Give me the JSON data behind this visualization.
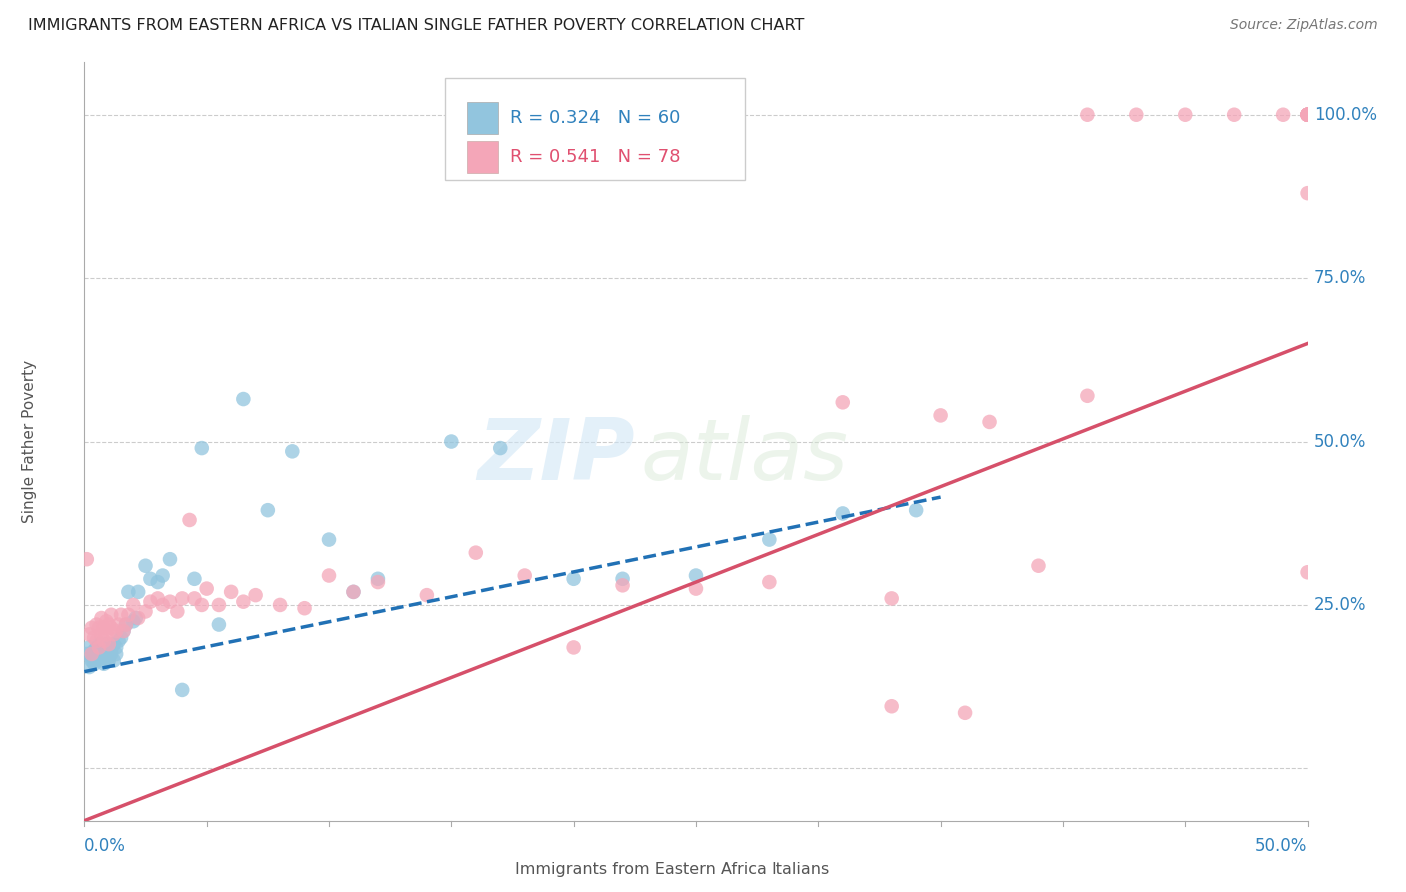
{
  "title": "IMMIGRANTS FROM EASTERN AFRICA VS ITALIAN SINGLE FATHER POVERTY CORRELATION CHART",
  "source": "Source: ZipAtlas.com",
  "ylabel": "Single Father Poverty",
  "xlim": [
    0.0,
    0.5
  ],
  "ylim": [
    -0.08,
    1.08
  ],
  "legend_r1": "R = 0.324",
  "legend_n1": "N = 60",
  "legend_r2": "R = 0.541",
  "legend_n2": "N = 78",
  "color_blue": "#92c5de",
  "color_pink": "#f4a6b8",
  "color_blue_line": "#2171b5",
  "color_pink_line": "#d6506a",
  "color_blue_text": "#3182bd",
  "color_pink_text": "#e05070",
  "watermark_zip": "ZIP",
  "watermark_atlas": "atlas",
  "blue_line_x0": 0.0,
  "blue_line_y0": 0.148,
  "blue_line_x1": 0.35,
  "blue_line_y1": 0.415,
  "pink_line_x0": 0.0,
  "pink_line_y0": -0.08,
  "pink_line_x1": 0.5,
  "pink_line_y1": 0.65,
  "blue_scatter_x": [
    0.001,
    0.002,
    0.002,
    0.003,
    0.003,
    0.004,
    0.004,
    0.005,
    0.005,
    0.005,
    0.006,
    0.006,
    0.007,
    0.007,
    0.007,
    0.008,
    0.008,
    0.008,
    0.009,
    0.009,
    0.01,
    0.01,
    0.01,
    0.011,
    0.011,
    0.012,
    0.012,
    0.013,
    0.013,
    0.014,
    0.015,
    0.016,
    0.017,
    0.018,
    0.02,
    0.021,
    0.022,
    0.025,
    0.027,
    0.03,
    0.032,
    0.035,
    0.04,
    0.045,
    0.048,
    0.055,
    0.065,
    0.075,
    0.085,
    0.1,
    0.11,
    0.12,
    0.15,
    0.17,
    0.2,
    0.22,
    0.25,
    0.28,
    0.31,
    0.34
  ],
  "blue_scatter_y": [
    0.175,
    0.155,
    0.185,
    0.17,
    0.165,
    0.18,
    0.16,
    0.175,
    0.185,
    0.165,
    0.19,
    0.17,
    0.185,
    0.165,
    0.175,
    0.18,
    0.17,
    0.16,
    0.19,
    0.175,
    0.185,
    0.17,
    0.165,
    0.18,
    0.175,
    0.19,
    0.165,
    0.185,
    0.175,
    0.195,
    0.2,
    0.21,
    0.22,
    0.27,
    0.225,
    0.23,
    0.27,
    0.31,
    0.29,
    0.285,
    0.295,
    0.32,
    0.12,
    0.29,
    0.49,
    0.22,
    0.565,
    0.395,
    0.485,
    0.35,
    0.27,
    0.29,
    0.5,
    0.49,
    0.29,
    0.29,
    0.295,
    0.35,
    0.39,
    0.395
  ],
  "pink_scatter_x": [
    0.001,
    0.002,
    0.003,
    0.003,
    0.004,
    0.005,
    0.005,
    0.006,
    0.006,
    0.007,
    0.007,
    0.008,
    0.008,
    0.009,
    0.009,
    0.01,
    0.01,
    0.011,
    0.011,
    0.012,
    0.013,
    0.014,
    0.015,
    0.016,
    0.017,
    0.018,
    0.02,
    0.022,
    0.025,
    0.027,
    0.03,
    0.032,
    0.035,
    0.038,
    0.04,
    0.043,
    0.045,
    0.048,
    0.05,
    0.055,
    0.06,
    0.065,
    0.07,
    0.08,
    0.09,
    0.1,
    0.11,
    0.12,
    0.14,
    0.16,
    0.18,
    0.2,
    0.22,
    0.25,
    0.28,
    0.31,
    0.33,
    0.35,
    0.37,
    0.39,
    0.41,
    0.43,
    0.45,
    0.47,
    0.49,
    0.5,
    0.5,
    0.5,
    0.5,
    0.5,
    0.5,
    0.5,
    0.5,
    0.5,
    0.41,
    0.5,
    0.33,
    0.36
  ],
  "pink_scatter_y": [
    0.32,
    0.205,
    0.215,
    0.175,
    0.2,
    0.22,
    0.195,
    0.215,
    0.185,
    0.205,
    0.23,
    0.215,
    0.195,
    0.225,
    0.205,
    0.22,
    0.19,
    0.215,
    0.235,
    0.205,
    0.21,
    0.22,
    0.235,
    0.21,
    0.22,
    0.235,
    0.25,
    0.23,
    0.24,
    0.255,
    0.26,
    0.25,
    0.255,
    0.24,
    0.26,
    0.38,
    0.26,
    0.25,
    0.275,
    0.25,
    0.27,
    0.255,
    0.265,
    0.25,
    0.245,
    0.295,
    0.27,
    0.285,
    0.265,
    0.33,
    0.295,
    0.185,
    0.28,
    0.275,
    0.285,
    0.56,
    0.26,
    0.54,
    0.53,
    0.31,
    1.0,
    1.0,
    1.0,
    1.0,
    1.0,
    1.0,
    1.0,
    1.0,
    1.0,
    1.0,
    1.0,
    1.0,
    1.0,
    0.88,
    0.57,
    0.3,
    0.095,
    0.085
  ]
}
